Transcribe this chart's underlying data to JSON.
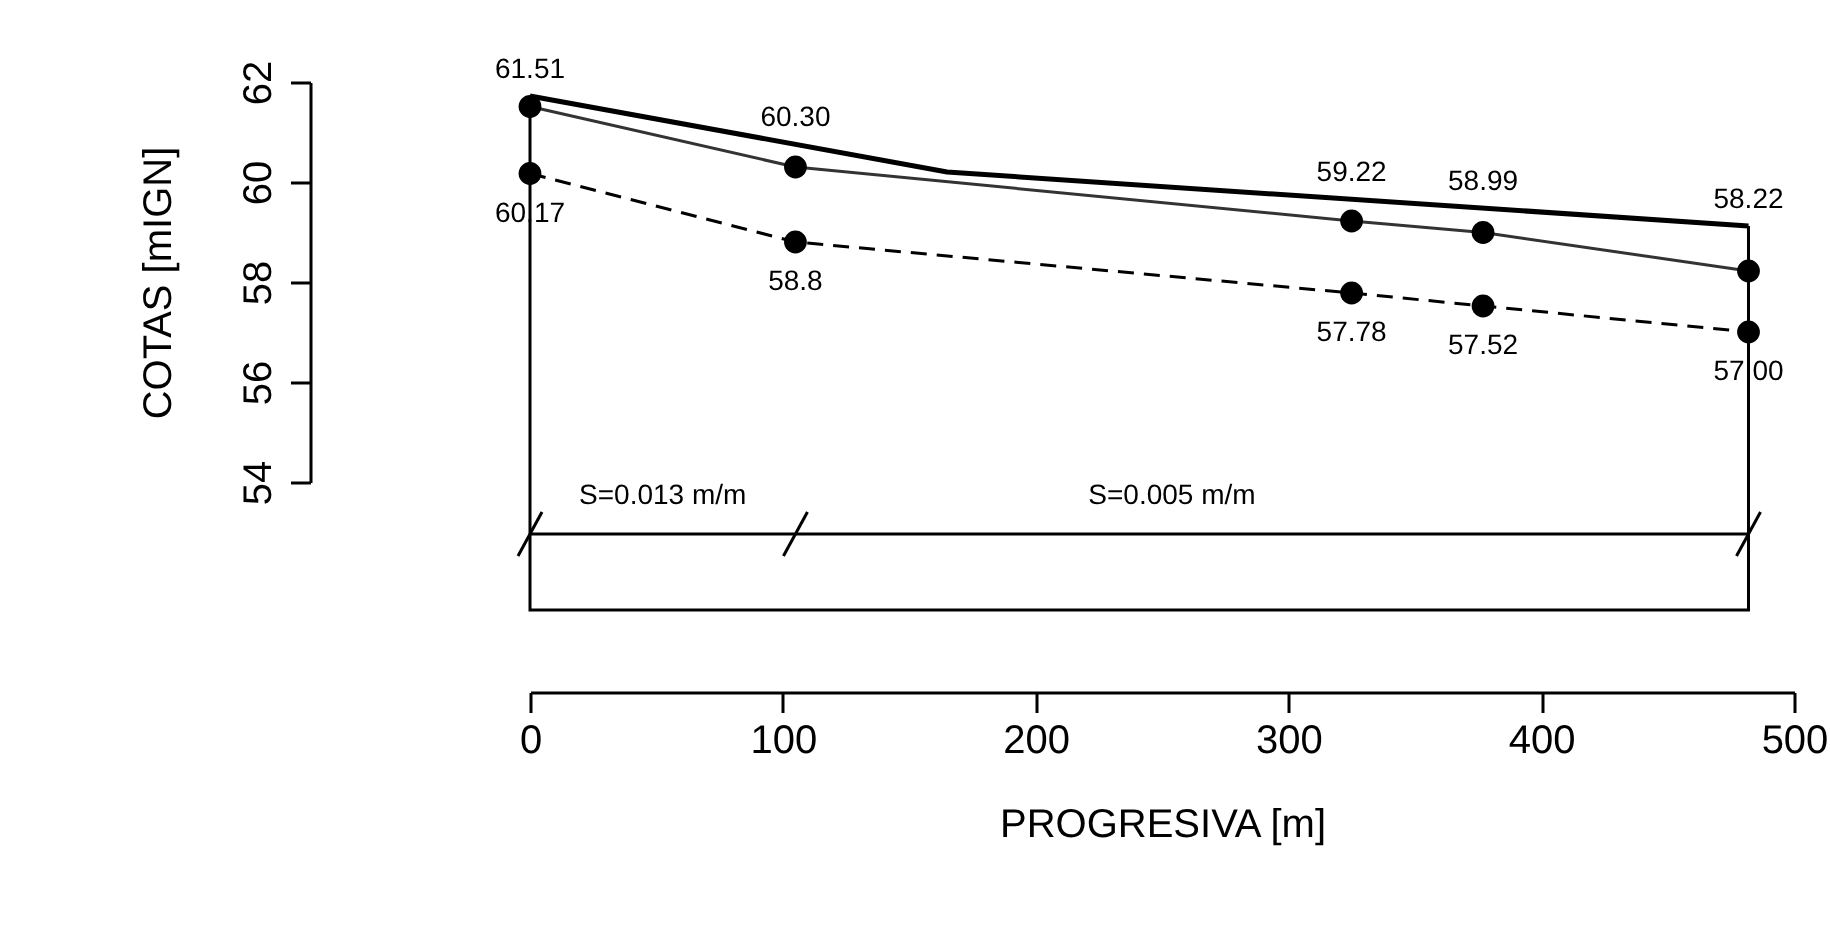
{
  "chart_data": {
    "type": "line",
    "xlabel": "PROGRESIVA [m]",
    "ylabel": "COTAS [mIGN]",
    "xlim": [
      0,
      500
    ],
    "xticks": [
      0,
      100,
      200,
      300,
      400,
      500
    ],
    "ylim": [
      54,
      62
    ],
    "yticks": [
      54,
      56,
      58,
      60,
      62
    ],
    "grid": false,
    "annotations": [
      "S=0.013 m/m",
      "S=0.005 m/m"
    ],
    "series": [
      {
        "color": "#000000",
        "x": [
          0,
          165,
          482
        ],
        "values": [
          61.72,
          60.2,
          59.12
        ],
        "marker": "none",
        "line_style": "solid"
      },
      {
        "color": "#333333",
        "x": [
          0,
          105,
          325,
          377,
          482
        ],
        "values": [
          61.51,
          60.3,
          59.22,
          58.99,
          58.22
        ],
        "marker": "circle",
        "line_style": "solid",
        "value_labels": [
          "61.51",
          "60.30",
          "59.22",
          "58.99",
          "58.22"
        ]
      },
      {
        "color": "#000000",
        "x": [
          0,
          105,
          325,
          377,
          482
        ],
        "values": [
          60.17,
          58.8,
          57.78,
          57.52,
          57.0
        ],
        "marker": "circle",
        "line_style": "dashed",
        "value_labels": [
          "60.17",
          "58.8",
          "57.78",
          "57.52",
          "57.00"
        ]
      }
    ]
  }
}
